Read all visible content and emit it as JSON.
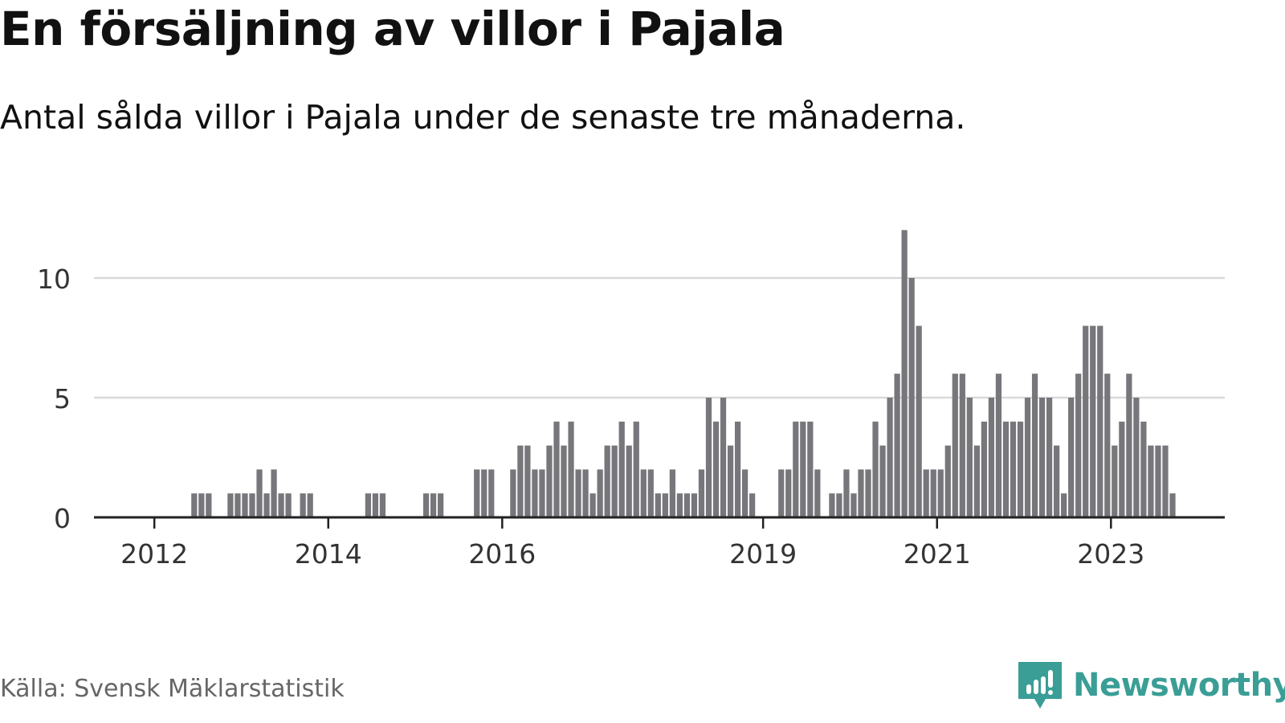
{
  "title": "En försäljning av villor i Pajala",
  "subtitle": "Antal sålda villor i Pajala under de senaste tre månaderna.",
  "source": "Källa: Svensk Mäklarstatistik",
  "brand": {
    "name": "Newsworthy",
    "logo_icon": "bar-chart-icon"
  },
  "colors": {
    "bar": "#76767b",
    "highlight": "#21a49a",
    "grid": "#d9d9d9",
    "axis": "#222222",
    "brand": "#3a9e96"
  },
  "chart_data": {
    "type": "bar",
    "title": "En försäljning av villor i Pajala",
    "xlabel": "",
    "ylabel": "",
    "ylim": [
      0,
      12.5
    ],
    "yticks": [
      0,
      5,
      10
    ],
    "ytick_labels": [
      "0",
      "5",
      "10"
    ],
    "xtick_labels": [
      "2012",
      "2014",
      "2016",
      "2019",
      "2021",
      "2023"
    ],
    "xtick_positions": [
      7.5,
      31.5,
      55.5,
      91.5,
      115.5,
      139.5
    ],
    "x_start": "2011-06",
    "x_end": "2023-10",
    "values": [
      0,
      0,
      0,
      0,
      0,
      0,
      0,
      0,
      0,
      0,
      0,
      0,
      0,
      1,
      1,
      1,
      0,
      0,
      1,
      1,
      1,
      1,
      2,
      1,
      2,
      1,
      1,
      0,
      1,
      1,
      0,
      0,
      0,
      0,
      0,
      0,
      0,
      1,
      1,
      1,
      0,
      0,
      0,
      0,
      0,
      1,
      1,
      1,
      0,
      0,
      0,
      0,
      2,
      2,
      2,
      0,
      0,
      2,
      3,
      3,
      2,
      2,
      3,
      4,
      3,
      4,
      2,
      2,
      1,
      2,
      3,
      3,
      4,
      3,
      4,
      2,
      2,
      1,
      1,
      2,
      1,
      1,
      1,
      2,
      5,
      4,
      5,
      3,
      4,
      2,
      1,
      0,
      0,
      0,
      2,
      2,
      4,
      4,
      4,
      2,
      0,
      1,
      1,
      2,
      1,
      2,
      2,
      4,
      3,
      5,
      6,
      12,
      10,
      8,
      2,
      2,
      2,
      3,
      6,
      6,
      5,
      3,
      4,
      5,
      6,
      4,
      4,
      4,
      5,
      6,
      5,
      5,
      3,
      1,
      5,
      6,
      8,
      8,
      8,
      6,
      3,
      4,
      6,
      5,
      4,
      3,
      3,
      3,
      1
    ],
    "highlight_index": 150,
    "highlight_label": "1"
  }
}
